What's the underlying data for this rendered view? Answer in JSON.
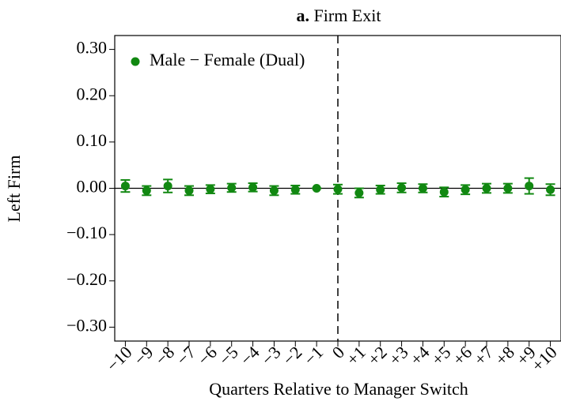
{
  "chart_data": {
    "type": "errorbar",
    "panel_label": "a.",
    "title": "Firm Exit",
    "xlabel": "Quarters Relative to Manager Switch",
    "ylabel": "Left Firm",
    "x": [
      -10,
      -9,
      -8,
      -7,
      -6,
      -5,
      -4,
      -3,
      -2,
      -1,
      0,
      1,
      2,
      3,
      4,
      5,
      6,
      7,
      8,
      9,
      10
    ],
    "series": [
      {
        "name": "Male − Female (Dual)",
        "color": "#118811",
        "values": [
          0.005,
          -0.005,
          0.005,
          -0.005,
          -0.002,
          0.001,
          0.002,
          -0.005,
          -0.003,
          0,
          -0.002,
          -0.01,
          -0.003,
          0.001,
          0,
          -0.008,
          -0.003,
          0,
          0,
          0.005,
          -0.003
        ],
        "errors": [
          0.013,
          0.01,
          0.014,
          0.01,
          0.009,
          0.009,
          0.009,
          0.01,
          0.009,
          0,
          0.01,
          0.01,
          0.009,
          0.01,
          0.009,
          0.01,
          0.01,
          0.01,
          0.01,
          0.017,
          0.012
        ]
      }
    ],
    "xlim": [
      -10.5,
      10.5
    ],
    "ylim": [
      -0.33,
      0.33
    ],
    "xticks": [
      {
        "value": -10,
        "label": "−10"
      },
      {
        "value": -9,
        "label": "−9"
      },
      {
        "value": -8,
        "label": "−8"
      },
      {
        "value": -7,
        "label": "−7"
      },
      {
        "value": -6,
        "label": "−6"
      },
      {
        "value": -5,
        "label": "−5"
      },
      {
        "value": -4,
        "label": "−4"
      },
      {
        "value": -3,
        "label": "−3"
      },
      {
        "value": -2,
        "label": "−2"
      },
      {
        "value": -1,
        "label": "−1"
      },
      0,
      {
        "value": 1,
        "label": "+1"
      },
      {
        "value": 2,
        "label": "+2"
      },
      {
        "value": 3,
        "label": "+3"
      },
      {
        "value": 4,
        "label": "+4"
      },
      {
        "value": 5,
        "label": "+5"
      },
      {
        "value": 6,
        "label": "+6"
      },
      {
        "value": 7,
        "label": "+7"
      },
      {
        "value": 8,
        "label": "+8"
      },
      {
        "value": 9,
        "label": "+9"
      },
      {
        "value": 10,
        "label": "+10"
      }
    ],
    "yticks": [
      {
        "value": 0.3,
        "label": "0.30"
      },
      {
        "value": 0.2,
        "label": "0.20"
      },
      {
        "value": 0.1,
        "label": "0.10"
      },
      {
        "value": 0,
        "label": "0.00"
      },
      {
        "value": -0.1,
        "label": "−0.10"
      },
      {
        "value": -0.2,
        "label": "−0.20"
      },
      {
        "value": -0.3,
        "label": "−0.30"
      }
    ],
    "vline": 0,
    "hline": 0,
    "legend": "upper left"
  }
}
